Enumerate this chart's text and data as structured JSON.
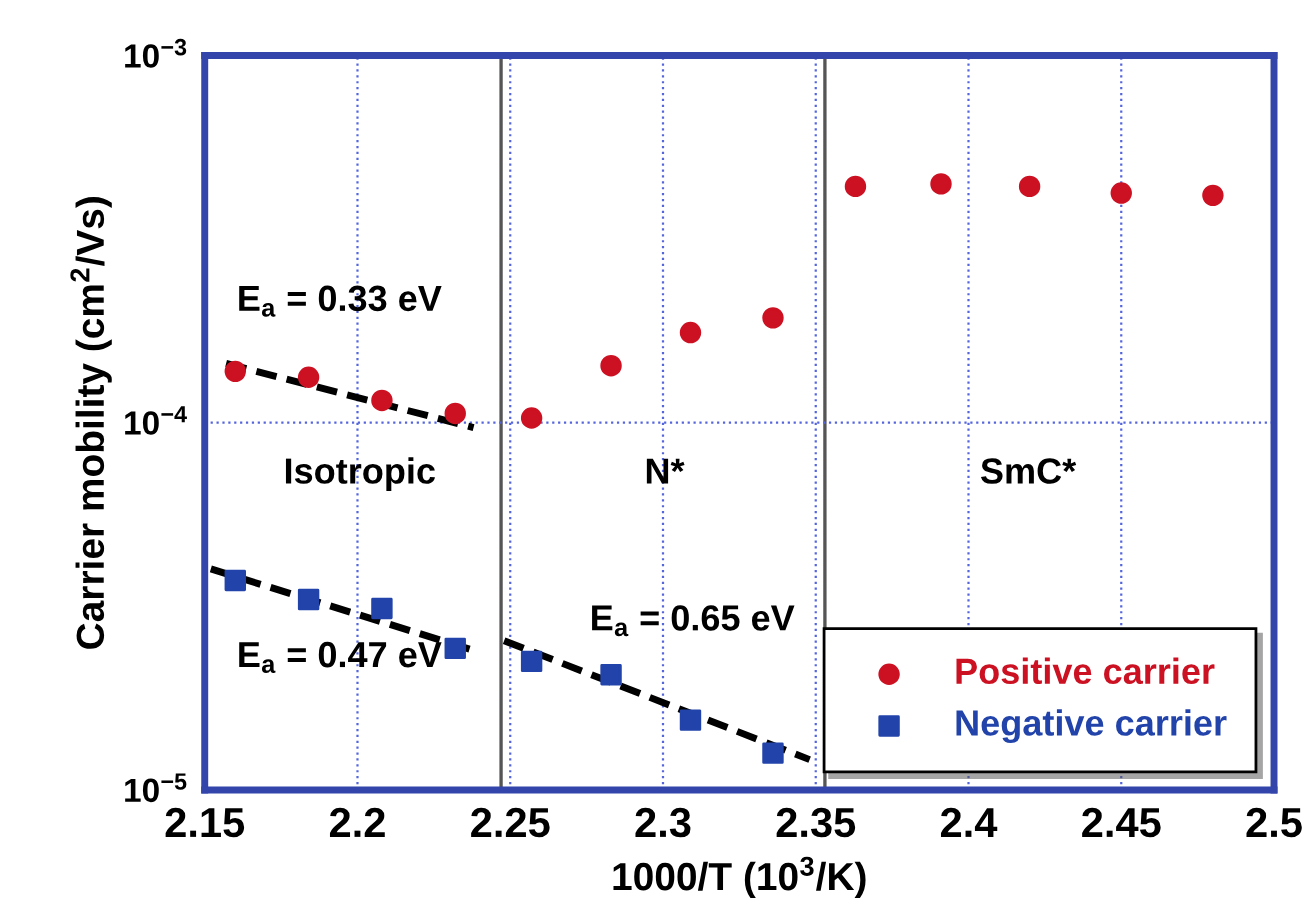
{
  "chart_data": {
    "type": "scatter",
    "xlabel": "1000/T (10$^{3}$/K)",
    "ylabel": "Carrier mobility (cm$^{2}$/Vs)",
    "xlim": [
      2.15,
      2.5
    ],
    "xticks": [
      2.15,
      2.2,
      2.25,
      2.3,
      2.35,
      2.4,
      2.45,
      2.5
    ],
    "ylim": [
      1e-05,
      0.001
    ],
    "yticks": [
      {
        "value": 1e-05,
        "label": "10$^{−5}$"
      },
      {
        "value": 0.0001,
        "label": "10$^{−4}$"
      },
      {
        "value": 0.001,
        "label": "10$^{−3}$"
      }
    ],
    "log": "y",
    "grid": true,
    "legend": "bottom right",
    "series": [
      {
        "name": "Positive carrier",
        "color": "#cc1122",
        "marker": "circle",
        "x": [
          2.16,
          2.184,
          2.208,
          2.232,
          2.257,
          2.283,
          2.309,
          2.336,
          2.363,
          2.391,
          2.42,
          2.45,
          2.48
        ],
        "values": [
          0.000138,
          0.000133,
          0.000115,
          0.000106,
          0.000103,
          0.000143,
          0.000176,
          0.000193,
          0.00044,
          0.000447,
          0.00044,
          0.000422,
          0.000416
        ]
      },
      {
        "name": "Negative carrier",
        "color": "#2244aa",
        "marker": "square",
        "x": [
          2.16,
          2.184,
          2.208,
          2.232,
          2.257,
          2.283,
          2.309,
          2.336
        ],
        "values": [
          3.72e-05,
          3.3e-05,
          3.12e-05,
          2.43e-05,
          2.24e-05,
          2.06e-05,
          1.55e-05,
          1.26e-05
        ]
      },
      {
        "type": "line",
        "color": "#000000",
        "line_style": "dashed",
        "x": [
          2.157,
          2.238
        ],
        "values": [
          0.000145,
          9.7e-05
        ]
      },
      {
        "type": "line",
        "color": "#000000",
        "line_style": "dashed",
        "x": [
          2.152,
          2.238
        ],
        "values": [
          4e-05,
          2.4e-05
        ]
      },
      {
        "type": "line",
        "color": "#000000",
        "line_style": "dashed",
        "x": [
          2.248,
          2.348
        ],
        "values": [
          2.55e-05,
          1.21e-05
        ]
      }
    ],
    "ref_lines": [
      {
        "axis": "x",
        "value": 2.247,
        "color": "#555555"
      },
      {
        "axis": "x",
        "value": 2.353,
        "color": "#555555"
      }
    ],
    "annotations": [
      "E$_{a}$ = 0.33 eV",
      "E$_{a}$ = 0.47 eV",
      "E$_{a}$ = 0.65 eV",
      "Isotropic",
      "N*",
      "SmC*"
    ]
  }
}
